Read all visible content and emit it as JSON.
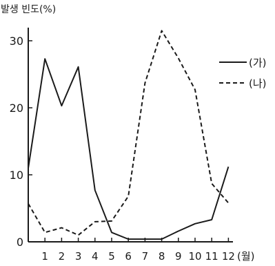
{
  "chart_data": {
    "type": "line",
    "ylabel": "발생 빈도(%)",
    "xunit": "(월)",
    "x": [
      0,
      1,
      2,
      3,
      4,
      5,
      6,
      7,
      8,
      9,
      10,
      11,
      12
    ],
    "x_tick_labels": [
      "1",
      "2",
      "3",
      "4",
      "5",
      "6",
      "7",
      "8",
      "9",
      "10",
      "11",
      "12"
    ],
    "y_tick_labels": [
      "0",
      "10",
      "20",
      "30"
    ],
    "xlim": [
      0,
      12
    ],
    "ylim": [
      0,
      33
    ],
    "grid": false,
    "legend_position": "top-right",
    "series": [
      {
        "name": "(가)",
        "style": "solid",
        "values": [
          11,
          27.3,
          20.3,
          26.1,
          7.7,
          1.4,
          0.4,
          0.4,
          0.4,
          1.6,
          2.7,
          3.3,
          11.2
        ]
      },
      {
        "name": "(나)",
        "style": "dashed",
        "values": [
          5.7,
          1.4,
          2.1,
          1.0,
          3.0,
          3.1,
          6.8,
          23.7,
          31.5,
          27.4,
          22.7,
          8.7,
          5.8
        ]
      }
    ]
  }
}
